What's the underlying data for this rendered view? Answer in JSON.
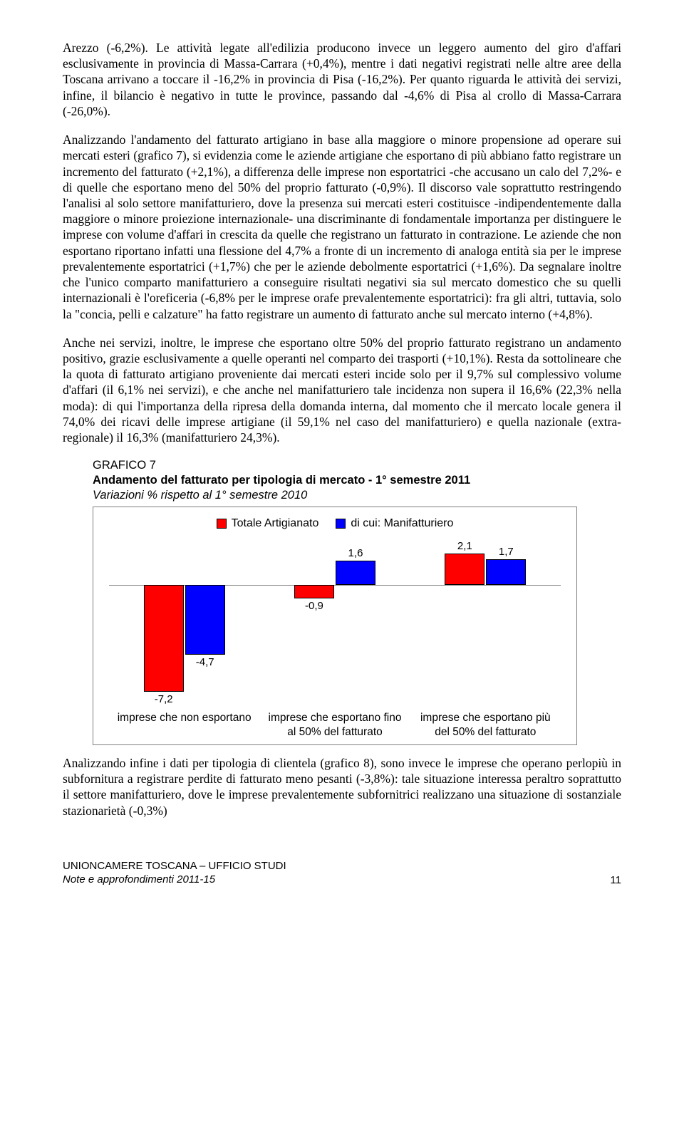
{
  "paragraphs": {
    "p1": "Arezzo (-6,2%). Le attività legate all'edilizia producono invece un leggero aumento del giro d'affari esclusivamente in provincia di Massa-Carrara (+0,4%), mentre i dati negativi registrati nelle altre aree della Toscana arrivano a toccare il -16,2% in provincia di Pisa (-16,2%). Per quanto riguarda le attività dei servizi, infine, il bilancio è negativo in tutte le province, passando dal -4,6% di Pisa al crollo di Massa-Carrara (-26,0%).",
    "p2": "Analizzando l'andamento del fatturato artigiano in base alla maggiore o minore propensione ad operare sui mercati esteri (grafico 7), si evidenzia come le aziende artigiane che esportano di più abbiano fatto registrare un incremento del fatturato (+2,1%), a differenza delle imprese non esportatrici -che accusano un calo del 7,2%- e di quelle che esportano meno del 50% del proprio fatturato (-0,9%). Il discorso vale soprattutto restringendo l'analisi al solo settore manifatturiero, dove la presenza sui mercati esteri costituisce -indipendentemente dalla maggiore o minore proiezione internazionale- una discriminante di fondamentale importanza per distinguere le imprese con volume d'affari in crescita da quelle che registrano un fatturato in contrazione. Le aziende che non esportano riportano infatti una flessione del 4,7% a fronte di un incremento di analoga entità sia per le imprese prevalentemente esportatrici (+1,7%) che per le aziende debolmente esportatrici (+1,6%). Da segnalare inoltre che l'unico comparto manifatturiero a conseguire risultati negativi sia sul mercato domestico che su quelli internazionali è l'oreficeria (-6,8% per le imprese orafe prevalentemente esportatrici): fra gli altri, tuttavia, solo la \"concia, pelli e calzature\" ha fatto registrare un aumento di fatturato anche sul mercato interno (+4,8%).",
    "p3": "Anche nei servizi, inoltre, le imprese che esportano oltre 50% del proprio fatturato registrano un andamento positivo, grazie esclusivamente a quelle operanti nel comparto dei trasporti (+10,1%). Resta da sottolineare che la quota di fatturato artigiano proveniente dai mercati esteri incide solo per il 9,7% sul complessivo volume d'affari (il 6,1% nei servizi), e che anche nel manifatturiero tale incidenza non supera il 16,6% (22,3% nella moda): di qui l'importanza della ripresa della domanda interna, dal momento che il mercato locale genera il 74,0% dei ricavi delle imprese artigiane (il 59,1% nel caso del manifatturiero) e quella nazionale (extra-regionale) il 16,3% (manifatturiero 24,3%).",
    "p4": "Analizzando infine i dati per tipologia di clientela (grafico 8), sono invece le imprese che operano perlopiù in subfornitura a registrare perdite di fatturato meno pesanti (-3,8%): tale situazione interessa peraltro soprattutto il settore manifatturiero, dove le imprese prevalentemente subfornitrici realizzano una situazione di sostanziale stazionarietà (-0,3%)"
  },
  "chart": {
    "number": "GRAFICO 7",
    "title": "Andamento del fatturato per tipologia di mercato - 1° semestre 2011",
    "subtitle": "Variazioni % rispetto al 1° semestre 2010",
    "legend": [
      {
        "label": "Totale Artigianato",
        "color": "#ff0000"
      },
      {
        "label": "di cui: Manifatturiero",
        "color": "#0000ff"
      }
    ],
    "colors": {
      "series0": "#ff0000",
      "series1": "#0000ff",
      "border": "#000000",
      "baseline": "#808080"
    },
    "y_range": {
      "min": -8,
      "max": 3
    },
    "categories": [
      "imprese che non esportano",
      "imprese che esportano fino al 50% del fatturato",
      "imprese che esportano più del 50% del fatturato"
    ],
    "data": [
      {
        "v0": -7.2,
        "v1": -4.7,
        "lbl0": "-7,2",
        "lbl1": "-4,7"
      },
      {
        "v0": -0.9,
        "v1": 1.6,
        "lbl0": "-0,9",
        "lbl1": "1,6"
      },
      {
        "v0": 2.1,
        "v1": 1.7,
        "lbl0": "2,1",
        "lbl1": "1,7"
      }
    ]
  },
  "footer": {
    "title": "UNIONCAMERE TOSCANA – UFFICIO STUDI",
    "subtitle": "Note e approfondimenti 2011-15",
    "page": "11"
  }
}
